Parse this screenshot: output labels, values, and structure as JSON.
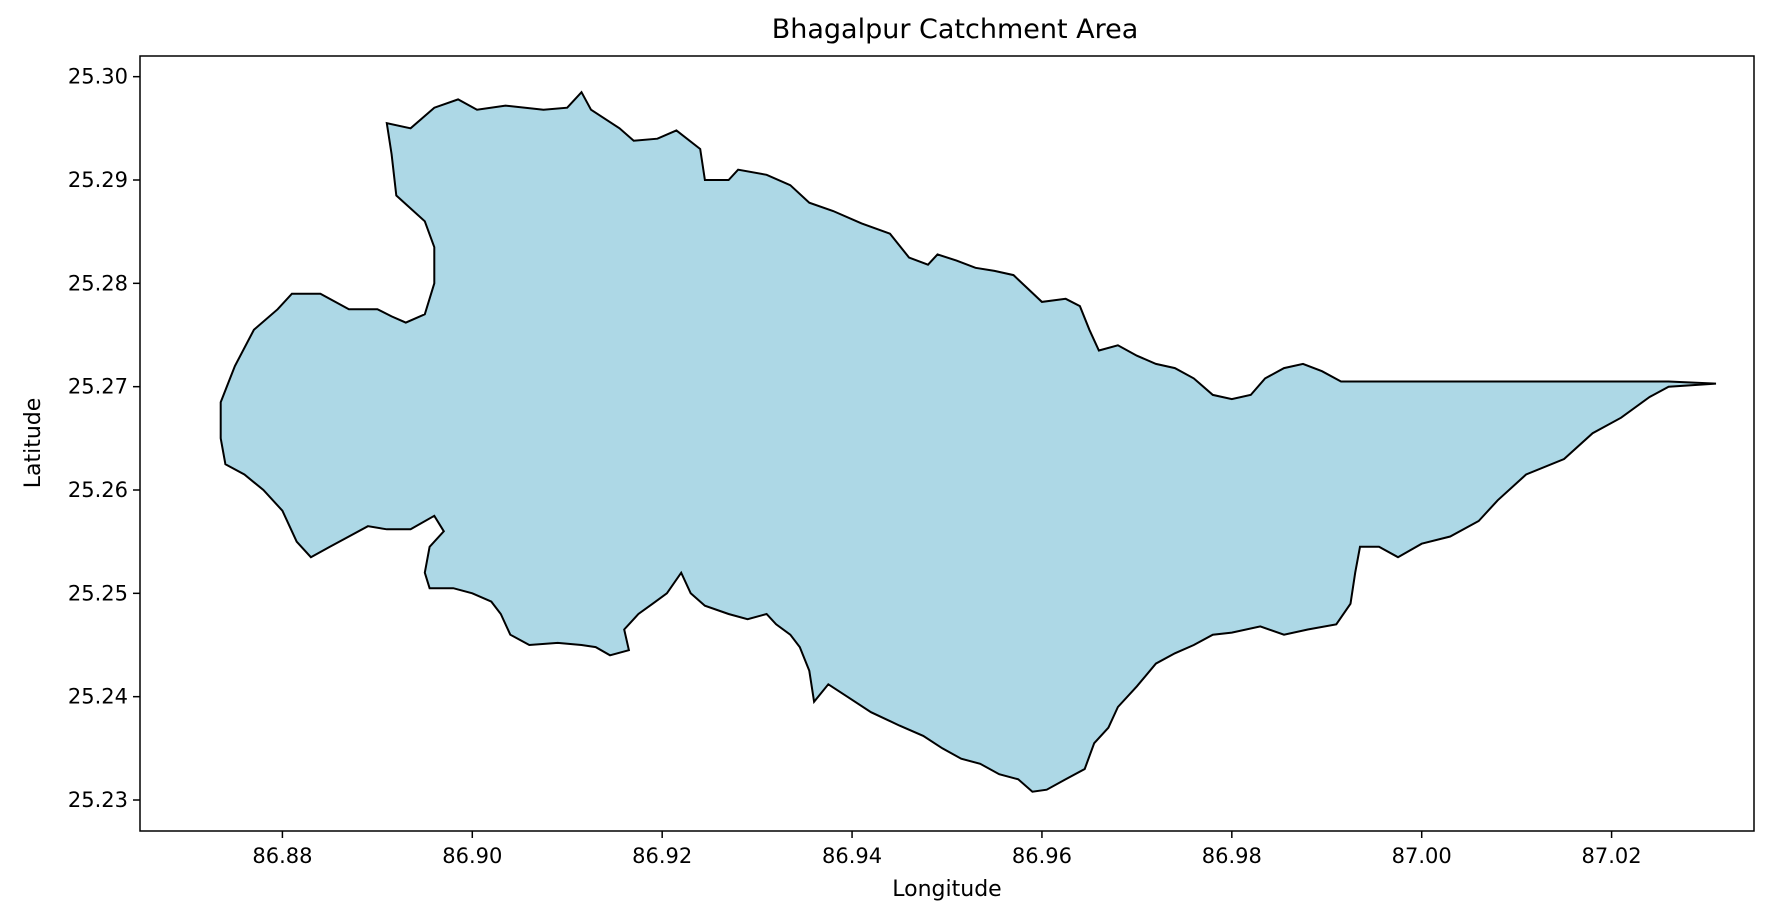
{
  "chart_data": {
    "type": "map",
    "title": "Bhagalpur Catchment Area",
    "xlabel": "Longitude",
    "ylabel": "Latitude",
    "xlim": [
      86.865,
      87.035
    ],
    "ylim": [
      25.227,
      25.302
    ],
    "x_ticks": [
      86.88,
      86.9,
      86.92,
      86.94,
      86.96,
      86.98,
      87.0,
      87.02
    ],
    "y_ticks": [
      25.23,
      25.24,
      25.25,
      25.26,
      25.27,
      25.28,
      25.29,
      25.3
    ],
    "x_tick_labels": [
      "86.88",
      "86.90",
      "86.92",
      "86.94",
      "86.96",
      "86.98",
      "87.00",
      "87.02"
    ],
    "y_tick_labels": [
      "25.23",
      "25.24",
      "25.25",
      "25.26",
      "25.27",
      "25.28",
      "25.29",
      "25.30"
    ],
    "grid": false,
    "fill_color": "#add8e6",
    "edge_color": "#000000",
    "polygon": [
      [
        86.8735,
        25.2685
      ],
      [
        86.875,
        25.272
      ],
      [
        86.877,
        25.2755
      ],
      [
        86.8795,
        25.2775
      ],
      [
        86.881,
        25.279
      ],
      [
        86.884,
        25.279
      ],
      [
        86.887,
        25.2775
      ],
      [
        86.89,
        25.2775
      ],
      [
        86.8915,
        25.2768
      ],
      [
        86.893,
        25.2762
      ],
      [
        86.895,
        25.277
      ],
      [
        86.896,
        25.28
      ],
      [
        86.896,
        25.2835
      ],
      [
        86.895,
        25.286
      ],
      [
        86.892,
        25.2885
      ],
      [
        86.8915,
        25.2925
      ],
      [
        86.891,
        25.2955
      ],
      [
        86.8935,
        25.295
      ],
      [
        86.896,
        25.297
      ],
      [
        86.8985,
        25.2978
      ],
      [
        86.9005,
        25.2968
      ],
      [
        86.9035,
        25.2972
      ],
      [
        86.9075,
        25.2968
      ],
      [
        86.91,
        25.297
      ],
      [
        86.9115,
        25.2985
      ],
      [
        86.9125,
        25.2968
      ],
      [
        86.9155,
        25.295
      ],
      [
        86.917,
        25.2938
      ],
      [
        86.9195,
        25.294
      ],
      [
        86.9215,
        25.2948
      ],
      [
        86.924,
        25.293
      ],
      [
        86.9245,
        25.29
      ],
      [
        86.927,
        25.29
      ],
      [
        86.928,
        25.291
      ],
      [
        86.931,
        25.2905
      ],
      [
        86.9335,
        25.2895
      ],
      [
        86.9355,
        25.2878
      ],
      [
        86.938,
        25.287
      ],
      [
        86.941,
        25.2858
      ],
      [
        86.944,
        25.2848
      ],
      [
        86.946,
        25.2825
      ],
      [
        86.948,
        25.2818
      ],
      [
        86.949,
        25.2828
      ],
      [
        86.951,
        25.2822
      ],
      [
        86.953,
        25.2815
      ],
      [
        86.955,
        25.2812
      ],
      [
        86.957,
        25.2808
      ],
      [
        86.9585,
        25.2795
      ],
      [
        86.96,
        25.2782
      ],
      [
        86.9625,
        25.2785
      ],
      [
        86.964,
        25.2778
      ],
      [
        86.965,
        25.2755
      ],
      [
        86.966,
        25.2735
      ],
      [
        86.968,
        25.274
      ],
      [
        86.97,
        25.273
      ],
      [
        86.972,
        25.2722
      ],
      [
        86.974,
        25.2718
      ],
      [
        86.976,
        25.2708
      ],
      [
        86.978,
        25.2692
      ],
      [
        86.98,
        25.2688
      ],
      [
        86.982,
        25.2692
      ],
      [
        86.9835,
        25.2708
      ],
      [
        86.9855,
        25.2718
      ],
      [
        86.9875,
        25.2722
      ],
      [
        86.9895,
        25.2715
      ],
      [
        86.9915,
        25.2705
      ],
      [
        87.0,
        25.2705
      ],
      [
        87.015,
        25.2705
      ],
      [
        87.026,
        25.2705
      ],
      [
        87.031,
        25.2703
      ],
      [
        87.026,
        25.27
      ],
      [
        87.024,
        25.269
      ],
      [
        87.021,
        25.267
      ],
      [
        87.018,
        25.2655
      ],
      [
        87.015,
        25.263
      ],
      [
        87.011,
        25.2615
      ],
      [
        87.008,
        25.259
      ],
      [
        87.006,
        25.257
      ],
      [
        87.003,
        25.2555
      ],
      [
        87.0,
        25.2548
      ],
      [
        86.9975,
        25.2535
      ],
      [
        86.9955,
        25.2545
      ],
      [
        86.9935,
        25.2545
      ],
      [
        86.993,
        25.252
      ],
      [
        86.9925,
        25.249
      ],
      [
        86.991,
        25.247
      ],
      [
        86.988,
        25.2465
      ],
      [
        86.9855,
        25.246
      ],
      [
        86.983,
        25.2468
      ],
      [
        86.98,
        25.2462
      ],
      [
        86.978,
        25.246
      ],
      [
        86.976,
        25.245
      ],
      [
        86.974,
        25.2442
      ],
      [
        86.972,
        25.2432
      ],
      [
        86.97,
        25.241
      ],
      [
        86.968,
        25.239
      ],
      [
        86.967,
        25.237
      ],
      [
        86.9655,
        25.2355
      ],
      [
        86.9645,
        25.233
      ],
      [
        86.9625,
        25.232
      ],
      [
        86.9605,
        25.231
      ],
      [
        86.959,
        25.2308
      ],
      [
        86.9575,
        25.232
      ],
      [
        86.9555,
        25.2325
      ],
      [
        86.9535,
        25.2335
      ],
      [
        86.9515,
        25.234
      ],
      [
        86.9495,
        25.235
      ],
      [
        86.9475,
        25.2362
      ],
      [
        86.945,
        25.2372
      ],
      [
        86.942,
        25.2385
      ],
      [
        86.9395,
        25.24
      ],
      [
        86.9375,
        25.2412
      ],
      [
        86.936,
        25.2395
      ],
      [
        86.9355,
        25.2425
      ],
      [
        86.9345,
        25.2448
      ],
      [
        86.9335,
        25.246
      ],
      [
        86.932,
        25.247
      ],
      [
        86.931,
        25.248
      ],
      [
        86.929,
        25.2475
      ],
      [
        86.927,
        25.248
      ],
      [
        86.9245,
        25.2488
      ],
      [
        86.923,
        25.25
      ],
      [
        86.922,
        25.252
      ],
      [
        86.9205,
        25.25
      ],
      [
        86.919,
        25.249
      ],
      [
        86.9175,
        25.248
      ],
      [
        86.916,
        25.2465
      ],
      [
        86.9165,
        25.2445
      ],
      [
        86.9145,
        25.244
      ],
      [
        86.913,
        25.2448
      ],
      [
        86.9115,
        25.245
      ],
      [
        86.909,
        25.2452
      ],
      [
        86.906,
        25.245
      ],
      [
        86.904,
        25.246
      ],
      [
        86.903,
        25.248
      ],
      [
        86.902,
        25.2492
      ],
      [
        86.9,
        25.25
      ],
      [
        86.898,
        25.2505
      ],
      [
        86.8955,
        25.2505
      ],
      [
        86.895,
        25.252
      ],
      [
        86.8955,
        25.2545
      ],
      [
        86.897,
        25.256
      ],
      [
        86.896,
        25.2575
      ],
      [
        86.8935,
        25.2562
      ],
      [
        86.891,
        25.2562
      ],
      [
        86.889,
        25.2565
      ],
      [
        86.887,
        25.2555
      ],
      [
        86.885,
        25.2545
      ],
      [
        86.883,
        25.2535
      ],
      [
        86.8815,
        25.255
      ],
      [
        86.88,
        25.258
      ],
      [
        86.878,
        25.26
      ],
      [
        86.876,
        25.2615
      ],
      [
        86.874,
        25.2625
      ],
      [
        86.8735,
        25.265
      ]
    ]
  }
}
